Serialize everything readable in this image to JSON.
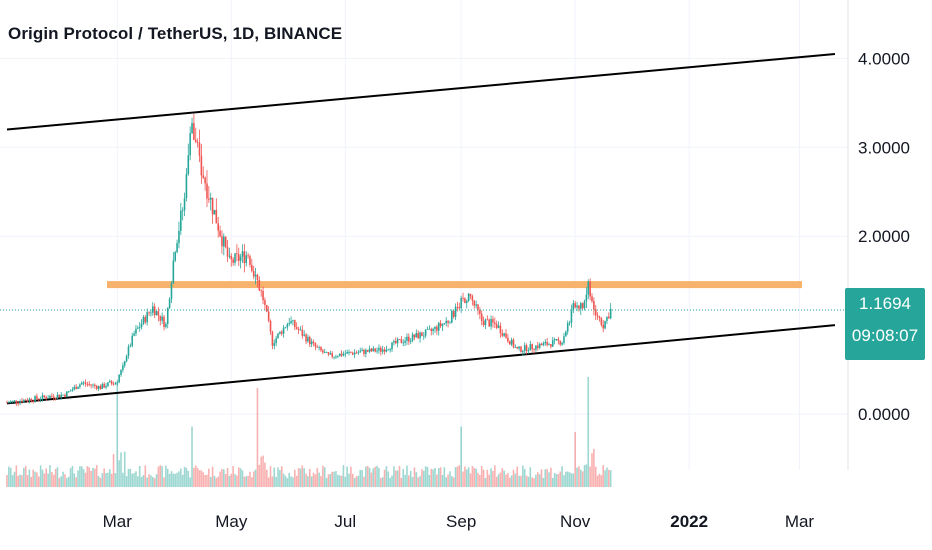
{
  "header": {
    "title": "Origin Protocol / TetherUS, 1D, BINANCE"
  },
  "price_badge": {
    "price": "1.1694",
    "countdown": "09:08:07",
    "color": "#26a69a"
  },
  "colors": {
    "up": "#26a69a",
    "down": "#ef5350",
    "resistance": "#f7b36b",
    "trendline": "#000000"
  },
  "chart_data": {
    "type": "candlestick",
    "title": "Origin Protocol / TetherUS, 1D, BINANCE",
    "y_tick_labels": [
      "4.0000",
      "3.0000",
      "2.0000",
      "0.0000"
    ],
    "y_ticks": [
      4,
      3,
      2,
      0
    ],
    "x_tick_labels": [
      "Mar",
      "May",
      "Jul",
      "Sep",
      "Nov",
      "2022",
      "Mar"
    ],
    "x_ticks": [
      "2021-03-01",
      "2021-05-01",
      "2021-07-01",
      "2021-09-01",
      "2021-11-01",
      "2022-01-01",
      "2022-03-01"
    ],
    "last_price": 1.1694,
    "resistance_level": 1.45,
    "trendlines": [
      {
        "from": [
          "2021-01-01",
          3.2
        ],
        "to": [
          "2022-03-20",
          4.05
        ]
      },
      {
        "from": [
          "2021-01-01",
          0.12
        ],
        "to": [
          "2022-03-20",
          1.0
        ]
      }
    ],
    "close_series": {
      "dates": [
        "2021-01-01",
        "2021-01-15",
        "2021-02-01",
        "2021-02-10",
        "2021-02-20",
        "2021-03-01",
        "2021-03-10",
        "2021-03-20",
        "2021-03-27",
        "2021-04-01",
        "2021-04-06",
        "2021-04-09",
        "2021-04-12",
        "2021-04-20",
        "2021-04-30",
        "2021-05-10",
        "2021-05-18",
        "2021-05-23",
        "2021-06-01",
        "2021-06-15",
        "2021-06-22",
        "2021-07-01",
        "2021-07-20",
        "2021-08-01",
        "2021-08-15",
        "2021-08-25",
        "2021-09-01",
        "2021-09-05",
        "2021-09-12",
        "2021-09-20",
        "2021-10-01",
        "2021-10-15",
        "2021-10-25",
        "2021-11-01",
        "2021-11-05",
        "2021-11-08",
        "2021-11-12",
        "2021-11-16",
        "2021-11-20"
      ],
      "values": [
        0.13,
        0.17,
        0.22,
        0.35,
        0.3,
        0.38,
        0.9,
        1.2,
        1.0,
        1.9,
        2.4,
        3.3,
        3.0,
        2.4,
        1.7,
        1.8,
        1.3,
        0.8,
        1.05,
        0.75,
        0.65,
        0.68,
        0.72,
        0.83,
        0.92,
        1.05,
        1.25,
        1.35,
        1.05,
        1.0,
        0.72,
        0.78,
        0.82,
        1.25,
        1.2,
        1.45,
        1.15,
        1.0,
        1.17
      ]
    },
    "volume_relative": {
      "note": "volume histogram beneath price, unlabelled",
      "spikes": [
        [
          "2021-03-01",
          0.95
        ],
        [
          "2021-04-10",
          0.55
        ],
        [
          "2021-05-15",
          0.9
        ],
        [
          "2021-09-01",
          0.55
        ],
        [
          "2021-11-01",
          0.5
        ],
        [
          "2021-11-08",
          1.0
        ]
      ]
    }
  }
}
